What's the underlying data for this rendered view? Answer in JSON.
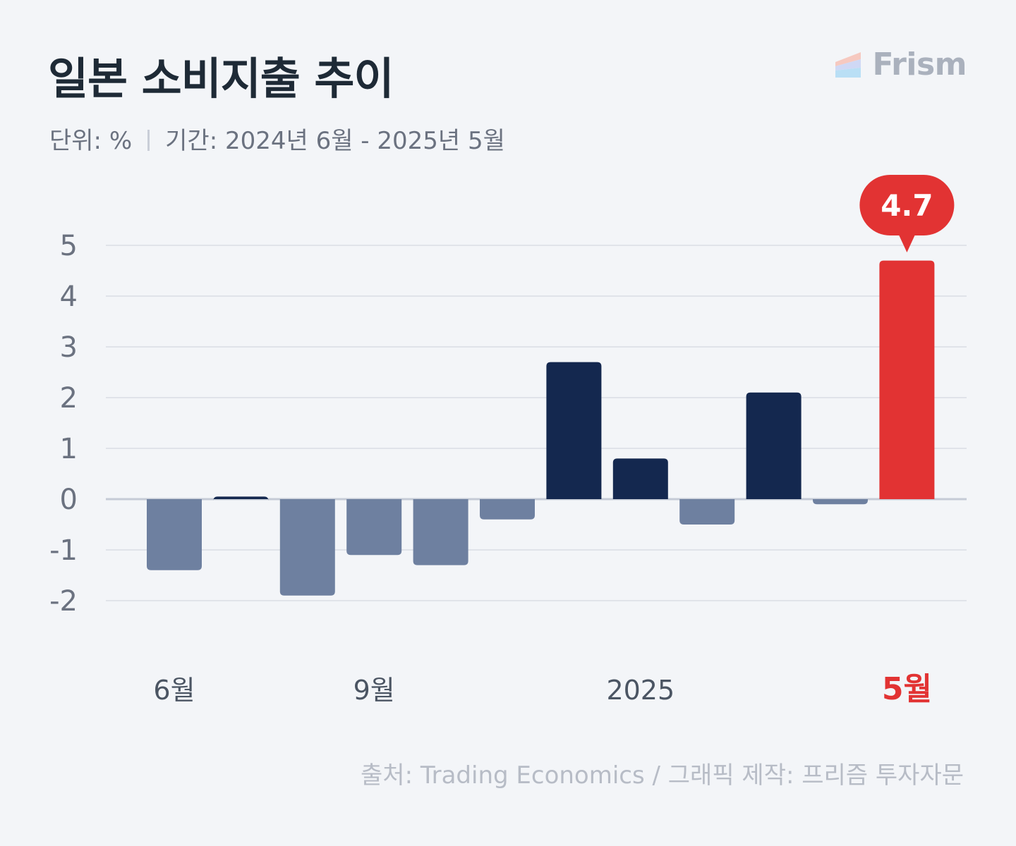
{
  "header": {
    "title": "일본 소비지출 추이",
    "unit_text": "단위: %",
    "period_text": "기간: 2024년 6월 - 2025년 5월"
  },
  "logo": {
    "text": "Frism",
    "icon": "frism-logo-icon"
  },
  "footer": {
    "source": "출처: Trading Economics / 그래픽 제작: 프리즘 투자자문"
  },
  "colors": {
    "negative": "#6e80a0",
    "positive": "#14284f",
    "highlight": "#e23333",
    "grid": "#d9dde4",
    "zero_line": "#c5cbd6",
    "tick_text": "#6b7280"
  },
  "chart_data": {
    "type": "bar",
    "title": "일본 소비지출 추이",
    "ylabel": "",
    "xlabel": "",
    "ylim": [
      -2,
      5
    ],
    "yticks": [
      5,
      4,
      3,
      2,
      1,
      0,
      -1,
      -2
    ],
    "grid": true,
    "categories": [
      "2024-06",
      "2024-07",
      "2024-08",
      "2024-09",
      "2024-10",
      "2024-11",
      "2024-12",
      "2025-01",
      "2025-02",
      "2025-03",
      "2025-04",
      "2025-05"
    ],
    "values": [
      -1.4,
      0.05,
      -1.9,
      -1.1,
      -1.3,
      -0.4,
      2.7,
      0.8,
      -0.5,
      2.1,
      -0.1,
      4.7
    ],
    "x_tick_labels": [
      {
        "index": 0,
        "label": "6월"
      },
      {
        "index": 3,
        "label": "9월"
      },
      {
        "index": 7,
        "label": "2025"
      },
      {
        "index": 11,
        "label": "5월",
        "highlight": true
      }
    ],
    "highlight_index": 11,
    "annotation": {
      "index": 11,
      "label": "4.7"
    }
  }
}
